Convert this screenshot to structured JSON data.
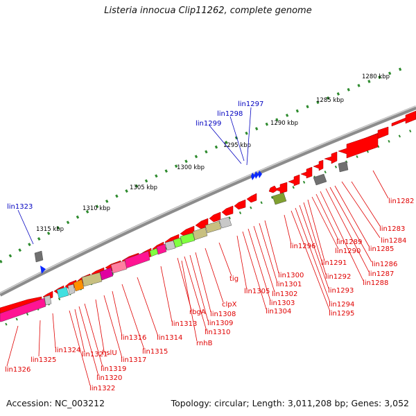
{
  "title": "Listeria innocua Clip11262, complete genome",
  "footer": {
    "accession": "Accession: NC_003212",
    "topology": "Topology: circular; Length: 3,011,208 bp; Genes: 3,052"
  },
  "colors": {
    "backbone": "#8c8c8c",
    "forward_gene": "#ff0000",
    "ruler_tick": "#2e8b2e",
    "label_forward": "#0000c0",
    "label_reverse": "#e00000",
    "cog_pink": "#ff1493",
    "cog_light_pink": "#ff7fa0",
    "cog_khaki": "#c8c080",
    "cog_olive": "#80a030",
    "cog_gray": "#707070",
    "cog_lightgray": "#c8c8c8",
    "cog_green": "#80ff40",
    "cog_cyan": "#40e0e0",
    "cog_orange": "#ff9000",
    "cog_magenta": "#e000a0"
  },
  "ruler_labels": [
    "1280 kbp",
    "1285 kbp",
    "1290 kbp",
    "1295 kbp",
    "1300 kbp",
    "1305 kbp",
    "1310 kbp",
    "1315 kbp"
  ],
  "forward_labels": [
    "lin1297",
    "lin1298",
    "lin1299",
    "lin1323"
  ],
  "reverse_labels": [
    "lin1282",
    "lin1283",
    "lin1284",
    "lin1285",
    "lin1286",
    "lin1287",
    "lin1288",
    "lin1289",
    "lin1290",
    "lin1291",
    "lin1292",
    "lin1293",
    "lin1294",
    "lin1295",
    "lin1296",
    "lin1300",
    "lin1301",
    "lin1302",
    "lin1303",
    "lin1304",
    "lin1305",
    "tig",
    "clpX",
    "rbgA",
    "lin1308",
    "lin1309",
    "lin1310",
    "rnhB",
    "lin1313",
    "lin1314",
    "lin1315",
    "lin1316",
    "lin1317",
    "hslU",
    "lin1319",
    "lin1320",
    "lin1321",
    "lin1322",
    "lin1324",
    "lin1325",
    "lin1326"
  ]
}
